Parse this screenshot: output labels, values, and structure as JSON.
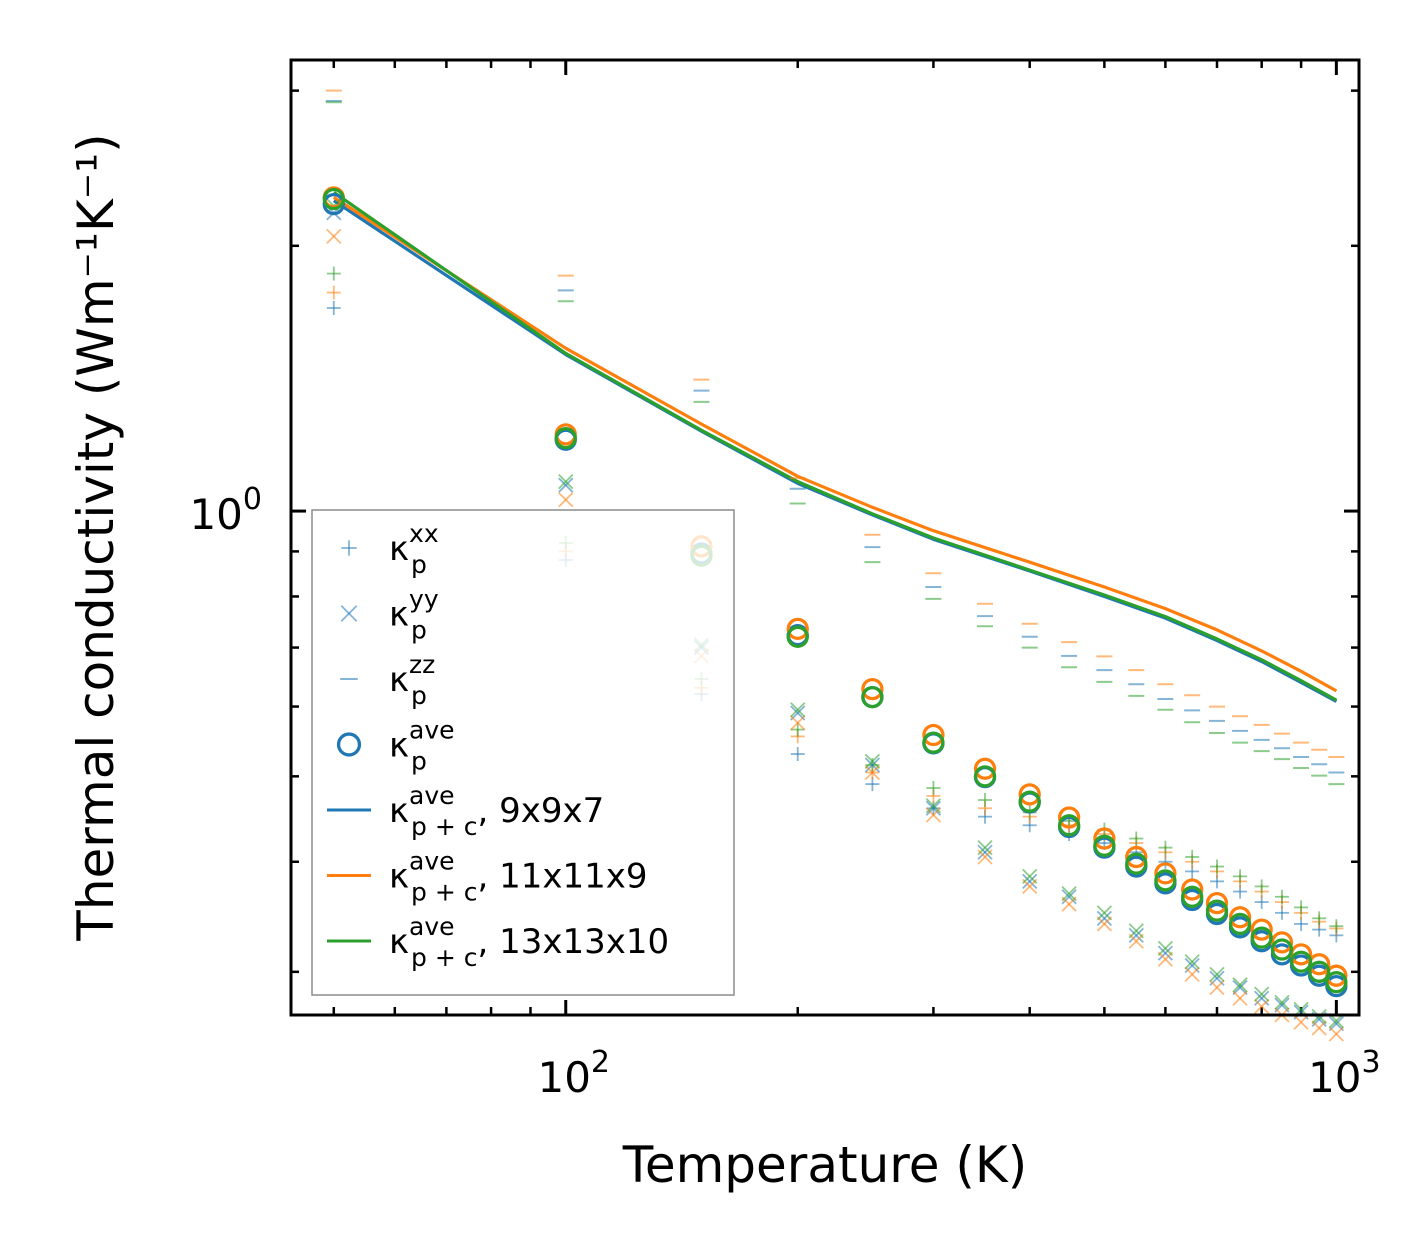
{
  "chart_data": {
    "type": "scatter",
    "title": "",
    "xlabel": "Temperature (K)",
    "ylabel": "Thermal conductivity (Wm⁻¹K⁻¹)",
    "xscale": "log",
    "yscale": "log",
    "xlim": [
      44,
      1070
    ],
    "ylim": [
      0.268,
      3.25
    ],
    "grid": false,
    "legend_position": "lower-left",
    "x_tick_labels": [
      {
        "value": 100,
        "base": "10",
        "exp": "2"
      },
      {
        "value": 1000,
        "base": "10",
        "exp": "3"
      }
    ],
    "y_tick_labels": [
      {
        "value": 1,
        "base": "10",
        "exp": "0"
      }
    ],
    "colors": {
      "blue": "#1f77b4",
      "orange": "#ff7f0e",
      "green": "#2ca02c"
    },
    "temperatures": [
      50,
      100,
      150,
      200,
      250,
      300,
      350,
      400,
      450,
      500,
      550,
      600,
      650,
      700,
      750,
      800,
      850,
      900,
      950,
      1000
    ],
    "series": [
      {
        "name": "κp,xx 9x9x7",
        "color": "#1f77b4",
        "marker": "plus",
        "alpha": 0.55,
        "values": [
          1.7,
          0.88,
          0.62,
          0.53,
          0.49,
          0.46,
          0.45,
          0.44,
          0.43,
          0.42,
          0.41,
          0.4,
          0.39,
          0.38,
          0.37,
          0.36,
          0.35,
          0.34,
          0.335,
          0.33
        ]
      },
      {
        "name": "κp,xx 11x11x9",
        "color": "#ff7f0e",
        "marker": "plus",
        "alpha": 0.55,
        "values": [
          1.77,
          0.9,
          0.63,
          0.555,
          0.505,
          0.475,
          0.46,
          0.45,
          0.44,
          0.43,
          0.42,
          0.41,
          0.4,
          0.39,
          0.38,
          0.37,
          0.36,
          0.35,
          0.342,
          0.336
        ]
      },
      {
        "name": "κp,xx 13x13x10",
        "color": "#2ca02c",
        "marker": "plus",
        "alpha": 0.55,
        "values": [
          1.86,
          0.92,
          0.645,
          0.565,
          0.515,
          0.485,
          0.47,
          0.455,
          0.445,
          0.435,
          0.425,
          0.415,
          0.405,
          0.395,
          0.385,
          0.375,
          0.365,
          0.355,
          0.345,
          0.338
        ]
      },
      {
        "name": "κp,yy 9x9x7",
        "color": "#1f77b4",
        "marker": "x",
        "alpha": 0.55,
        "values": [
          2.18,
          1.07,
          0.7,
          0.59,
          0.515,
          0.46,
          0.41,
          0.38,
          0.365,
          0.345,
          0.33,
          0.315,
          0.305,
          0.295,
          0.288,
          0.28,
          0.275,
          0.27,
          0.265,
          0.262
        ]
      },
      {
        "name": "κp,yy 11x11x9",
        "color": "#ff7f0e",
        "marker": "x",
        "alpha": 0.55,
        "values": [
          2.05,
          1.03,
          0.685,
          0.575,
          0.505,
          0.452,
          0.405,
          0.375,
          0.358,
          0.34,
          0.325,
          0.31,
          0.298,
          0.288,
          0.28,
          0.274,
          0.268,
          0.263,
          0.259,
          0.255
        ]
      },
      {
        "name": "κp,yy 13x13x10",
        "color": "#2ca02c",
        "marker": "x",
        "alpha": 0.55,
        "values": [
          2.22,
          1.08,
          0.705,
          0.595,
          0.52,
          0.463,
          0.415,
          0.385,
          0.368,
          0.35,
          0.334,
          0.319,
          0.308,
          0.298,
          0.29,
          0.283,
          0.277,
          0.272,
          0.267,
          0.264
        ]
      },
      {
        "name": "κp,zz 9x9x7",
        "color": "#1f77b4",
        "marker": "dash",
        "alpha": 0.55,
        "values": [
          2.92,
          1.78,
          1.37,
          1.06,
          0.91,
          0.82,
          0.76,
          0.72,
          0.685,
          0.66,
          0.636,
          0.612,
          0.594,
          0.578,
          0.563,
          0.55,
          0.538,
          0.526,
          0.516,
          0.505
        ]
      },
      {
        "name": "κp,zz 11x11x9",
        "color": "#ff7f0e",
        "marker": "dash",
        "alpha": 0.55,
        "values": [
          3.0,
          1.85,
          1.41,
          1.09,
          0.94,
          0.85,
          0.785,
          0.745,
          0.71,
          0.684,
          0.66,
          0.636,
          0.618,
          0.6,
          0.585,
          0.572,
          0.559,
          0.546,
          0.536,
          0.526
        ]
      },
      {
        "name": "κp,zz 13x13x10",
        "color": "#2ca02c",
        "marker": "dash",
        "alpha": 0.55,
        "values": [
          2.91,
          1.73,
          1.33,
          1.02,
          0.875,
          0.795,
          0.74,
          0.7,
          0.665,
          0.64,
          0.617,
          0.595,
          0.576,
          0.56,
          0.546,
          0.534,
          0.523,
          0.511,
          0.501,
          0.49
        ]
      },
      {
        "name": "κp,ave 9x9x7",
        "color": "#1f77b4",
        "marker": "circle",
        "alpha": 1,
        "values": [
          2.23,
          1.205,
          0.895,
          0.723,
          0.615,
          0.545,
          0.499,
          0.467,
          0.438,
          0.415,
          0.395,
          0.378,
          0.362,
          0.349,
          0.337,
          0.325,
          0.314,
          0.305,
          0.297,
          0.289
        ]
      },
      {
        "name": "κp,ave 11x11x9",
        "color": "#ff7f0e",
        "marker": "circle",
        "alpha": 1,
        "values": [
          2.27,
          1.222,
          0.912,
          0.735,
          0.628,
          0.557,
          0.51,
          0.477,
          0.449,
          0.425,
          0.405,
          0.388,
          0.372,
          0.359,
          0.346,
          0.335,
          0.324,
          0.314,
          0.306,
          0.297
        ]
      },
      {
        "name": "κp,ave 13x13x10",
        "color": "#2ca02c",
        "marker": "circle",
        "alpha": 1,
        "values": [
          2.26,
          1.21,
          0.89,
          0.72,
          0.615,
          0.546,
          0.5,
          0.468,
          0.44,
          0.417,
          0.398,
          0.381,
          0.365,
          0.352,
          0.34,
          0.328,
          0.318,
          0.308,
          0.3,
          0.292
        ]
      }
    ],
    "lines": [
      {
        "name": "κp+c,ave 9x9x7",
        "color": "#1f77b4",
        "x": [
          50,
          100,
          150,
          200,
          250,
          300,
          400,
          500,
          600,
          700,
          800,
          900,
          1000
        ],
        "values": [
          2.25,
          1.505,
          1.232,
          1.075,
          0.99,
          0.929,
          0.855,
          0.8,
          0.756,
          0.713,
          0.675,
          0.639,
          0.608
        ]
      },
      {
        "name": "κp+c,ave 11x11x9",
        "color": "#ff7f0e",
        "x": [
          50,
          100,
          150,
          200,
          250,
          300,
          400,
          500,
          600,
          700,
          800,
          900,
          1000
        ],
        "values": [
          2.27,
          1.53,
          1.255,
          1.095,
          1.01,
          0.95,
          0.875,
          0.82,
          0.775,
          0.733,
          0.694,
          0.658,
          0.625
        ]
      },
      {
        "name": "κp+c,ave 13x13x10",
        "color": "#2ca02c",
        "x": [
          50,
          100,
          150,
          200,
          250,
          300,
          400,
          500,
          600,
          700,
          800,
          900,
          1000
        ],
        "values": [
          2.3,
          1.51,
          1.235,
          1.08,
          0.993,
          0.932,
          0.857,
          0.803,
          0.759,
          0.716,
          0.678,
          0.642,
          0.61
        ]
      }
    ],
    "legend": [
      {
        "marker": "plus",
        "color": "#1f77b4",
        "alpha": 0.55,
        "base": "κ",
        "sup": "xx",
        "sub": "p",
        "suffix": ""
      },
      {
        "marker": "x",
        "color": "#1f77b4",
        "alpha": 0.55,
        "base": "κ",
        "sup": "yy",
        "sub": "p",
        "suffix": ""
      },
      {
        "marker": "dash",
        "color": "#1f77b4",
        "alpha": 0.55,
        "base": "κ",
        "sup": "zz",
        "sub": "p",
        "suffix": ""
      },
      {
        "marker": "circle",
        "color": "#1f77b4",
        "alpha": 1,
        "base": "κ",
        "sup": "ave",
        "sub": "p",
        "suffix": ""
      },
      {
        "marker": "line",
        "color": "#1f77b4",
        "alpha": 1,
        "base": "κ",
        "sup": "ave",
        "sub": "p + c",
        "suffix": ", 9x9x7"
      },
      {
        "marker": "line",
        "color": "#ff7f0e",
        "alpha": 1,
        "base": "κ",
        "sup": "ave",
        "sub": "p + c",
        "suffix": ", 11x11x9"
      },
      {
        "marker": "line",
        "color": "#2ca02c",
        "alpha": 1,
        "base": "κ",
        "sup": "ave",
        "sub": "p + c",
        "suffix": ", 13x13x10"
      }
    ]
  }
}
